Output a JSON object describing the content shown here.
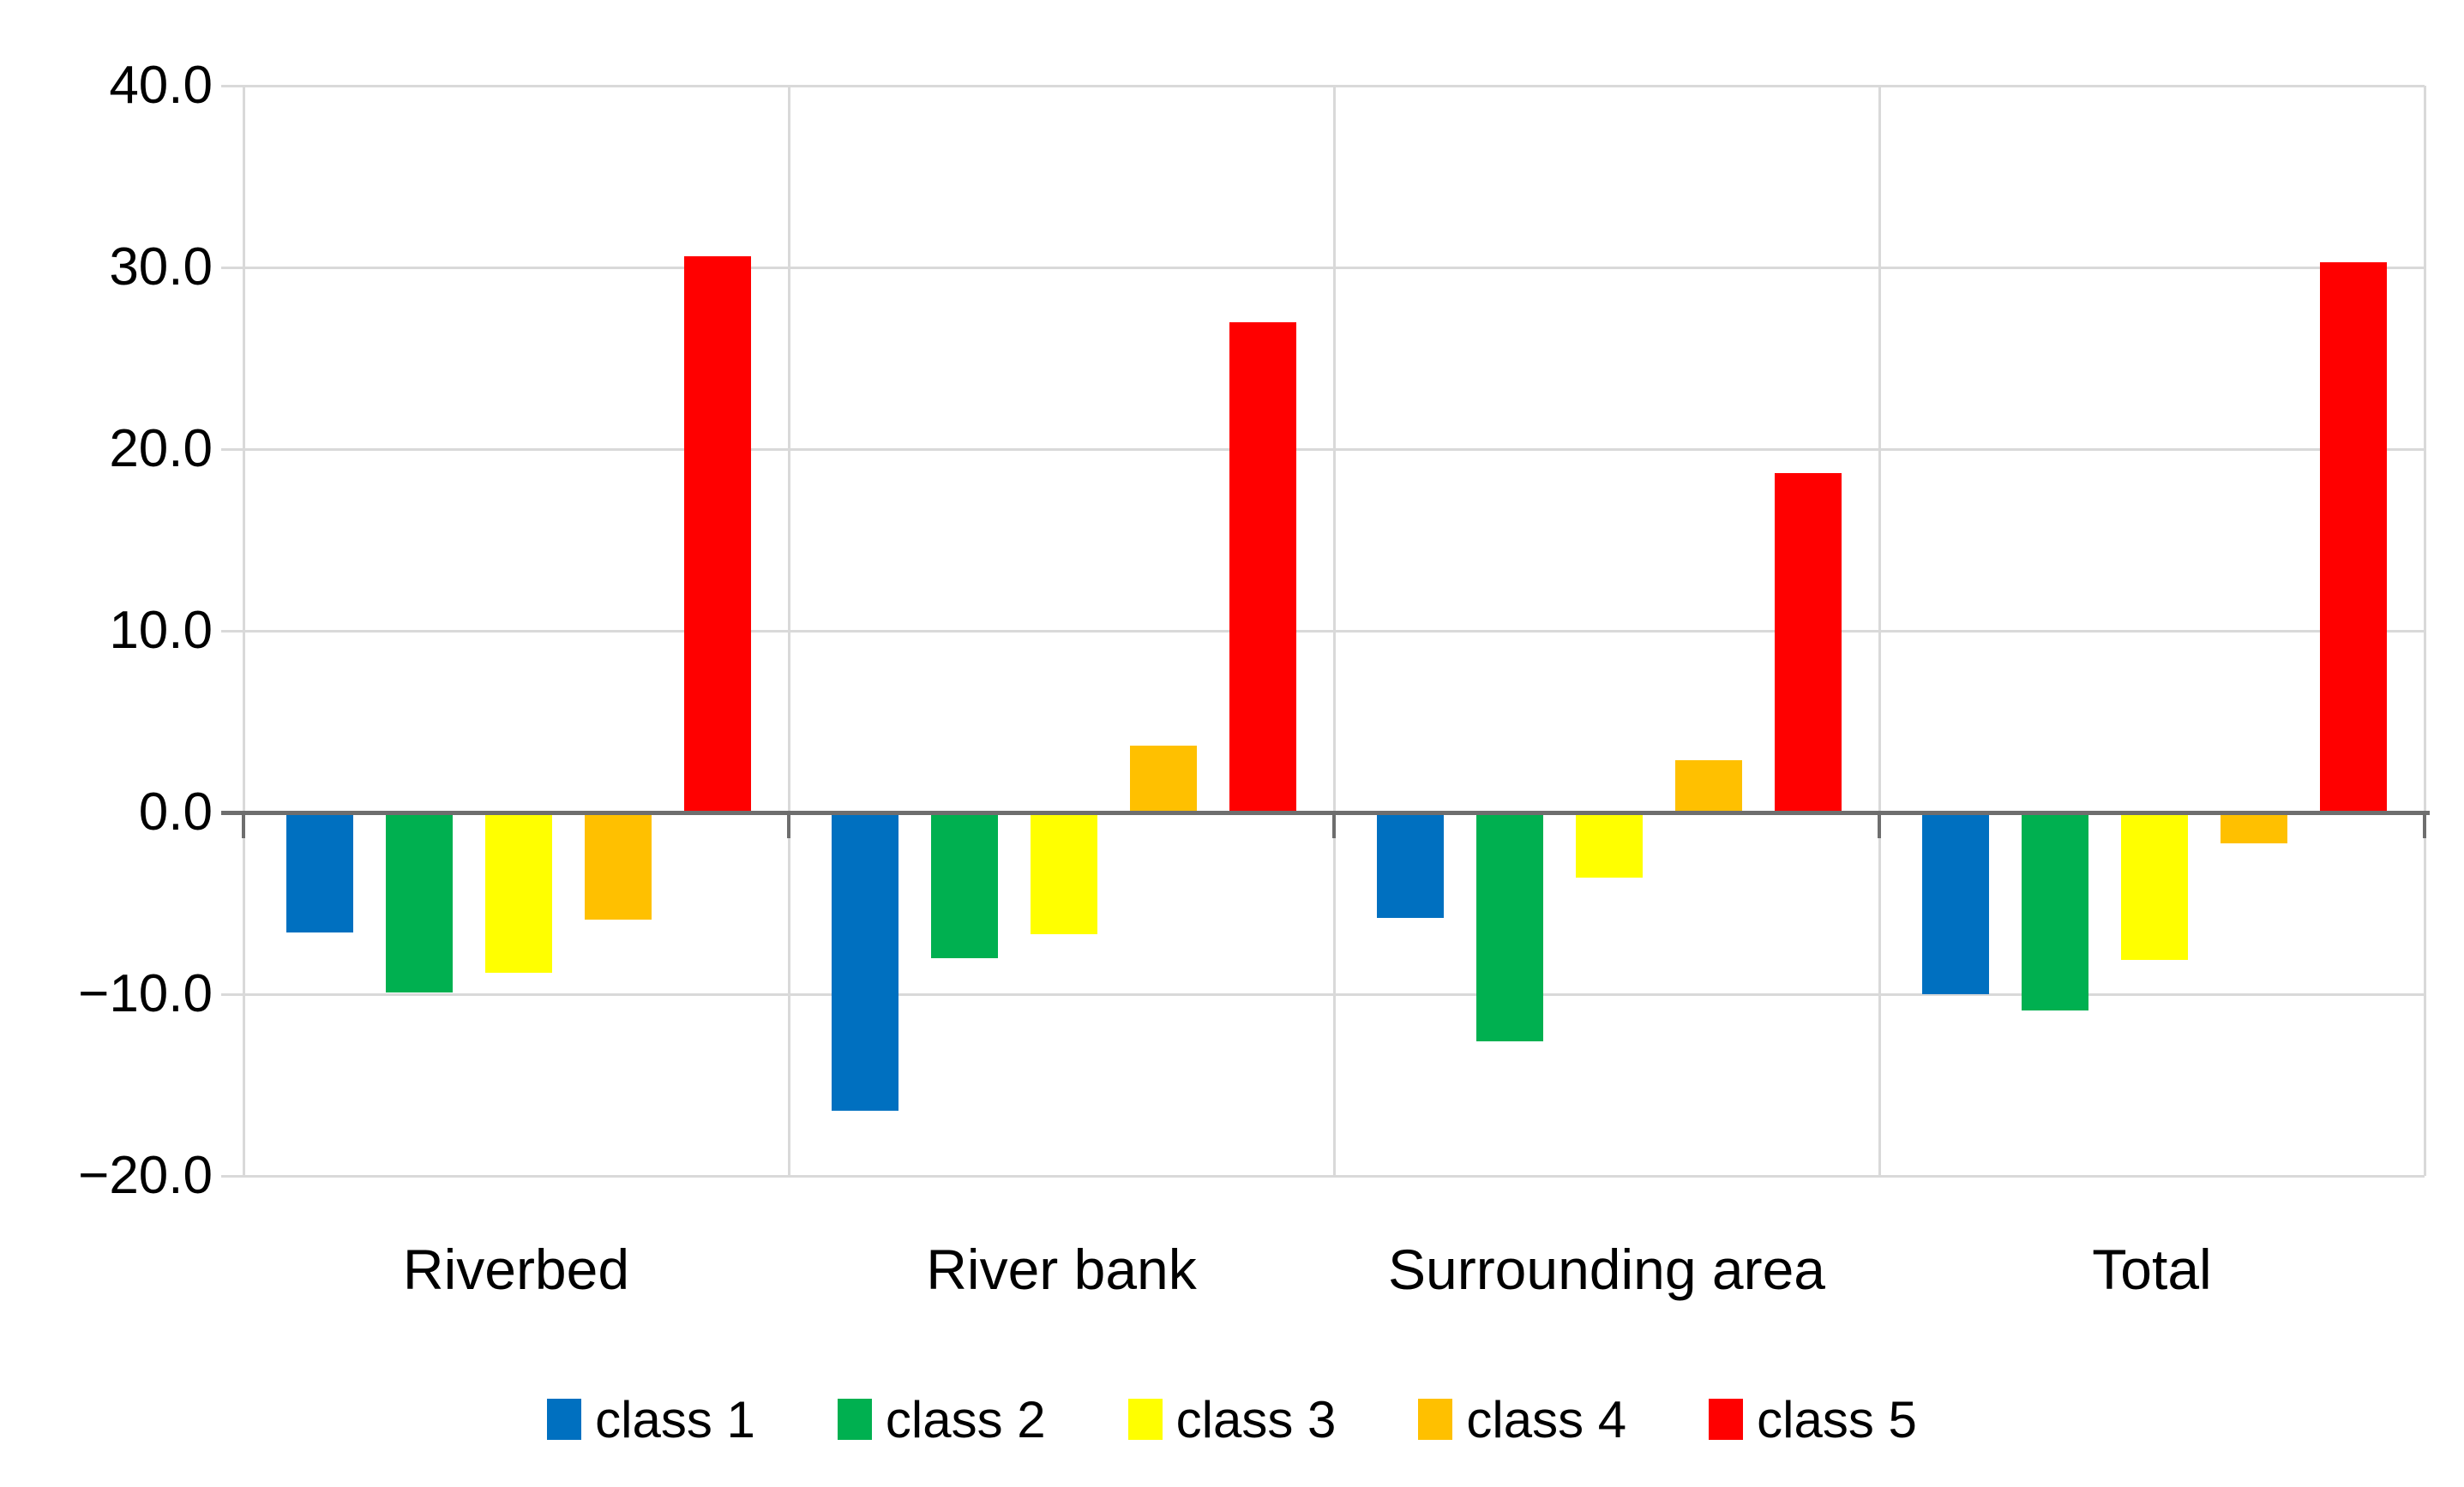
{
  "chart_data": {
    "type": "bar",
    "title": "",
    "xlabel": "",
    "ylabel": "",
    "categories": [
      "Riverbed",
      "River bank",
      "Surrounding area",
      "Total"
    ],
    "series": [
      {
        "name": "class 1",
        "color": "#0070C0",
        "values": [
          -6.6,
          -16.4,
          -5.8,
          -10.0
        ]
      },
      {
        "name": "class 2",
        "color": "#00B050",
        "values": [
          -9.9,
          -8.0,
          -12.6,
          -10.9
        ]
      },
      {
        "name": "class 3",
        "color": "#FFFF00",
        "values": [
          -8.8,
          -6.7,
          -3.6,
          -8.1
        ]
      },
      {
        "name": "class 4",
        "color": "#FFC000",
        "values": [
          -5.9,
          3.7,
          2.9,
          -1.7
        ]
      },
      {
        "name": "class 5",
        "color": "#FF0000",
        "values": [
          30.6,
          27.0,
          18.7,
          30.3
        ]
      }
    ],
    "ylim": [
      -20,
      40
    ],
    "y_tick_step": 10,
    "y_tick_labels": [
      "40.0",
      "30.0",
      "20.0",
      "10.0",
      "0.0",
      "−10.0",
      "−20.0"
    ],
    "grid": true,
    "legend_position": "bottom",
    "colors": {
      "gridline": "#D9D9D9",
      "axis_line": "#6E6E6E",
      "text": "#000000",
      "background": "#FFFFFF"
    }
  }
}
